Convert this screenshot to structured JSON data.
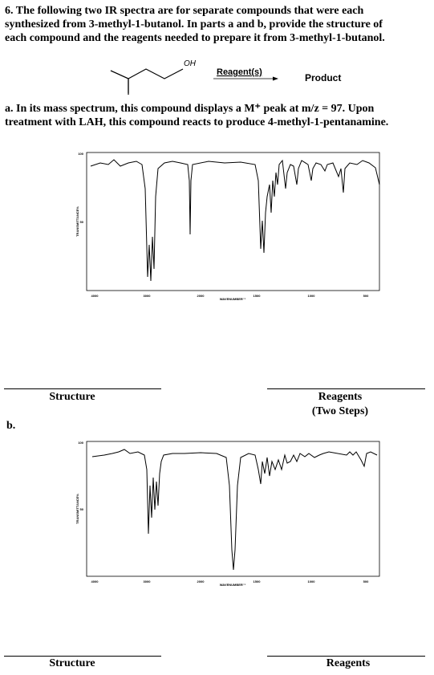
{
  "question": {
    "lines": [
      "6.  The following two IR spectra are for separate compounds that were each",
      "synthesized from 3-methyl-1-butanol.  In parts a and b, provide the structure of",
      "each compound and the reagents needed to prepare it from 3-methyl-1-butanol."
    ],
    "scheme": {
      "oh": "OH",
      "reagents": "Reagent(s)",
      "product": "Product"
    }
  },
  "part_a": {
    "lines": [
      "a. In its mass spectrum, this compound displays a M⁺ peak at m/z =  97.  Upon",
      "treatment with LAH, this compound reacts to produce 4-methyl-1-pentanamine."
    ],
    "structure_label": "Structure",
    "reagents_label": "Reagents",
    "reagents_note": "(Two Steps)"
  },
  "part_b": {
    "label": "b.",
    "structure_label": "Structure",
    "reagents_label": "Reagents"
  },
  "spectrum_axes": {
    "x_ticks": [
      "4000",
      "3000",
      "2000",
      "1500",
      "1000",
      "500"
    ],
    "y_ticks": [
      "100",
      "50"
    ],
    "x_label": "WAVENUMBER⁻¹",
    "y_label": "TRANSMITTANCE%"
  }
}
